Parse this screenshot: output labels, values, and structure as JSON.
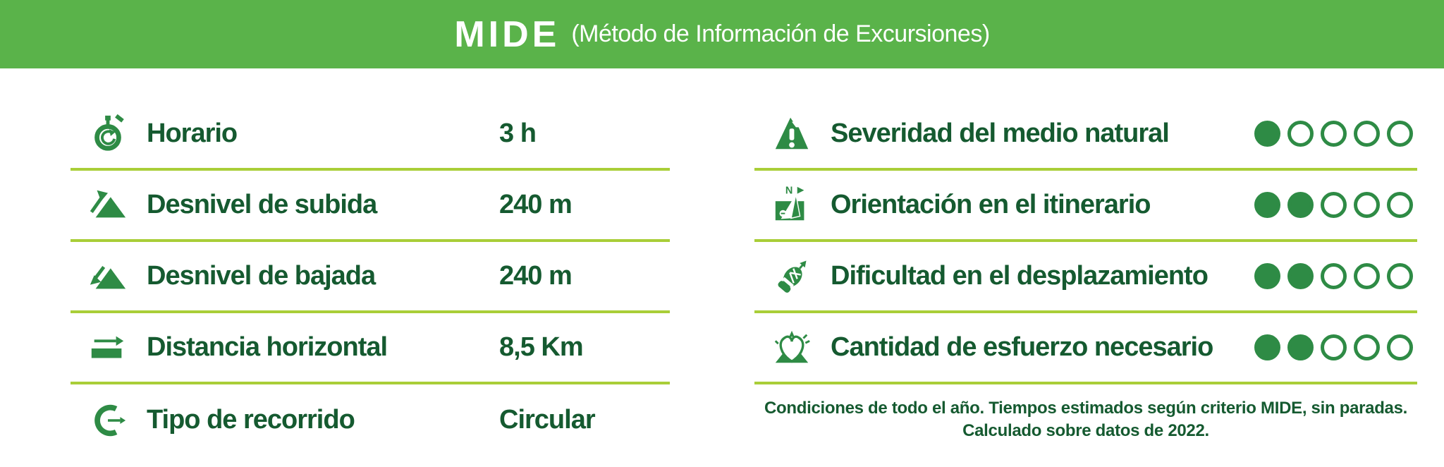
{
  "header": {
    "logo": "MIDE",
    "subtitle": "(Método de Información de Excursiones)"
  },
  "colors": {
    "header_bg": "#5ab34a",
    "icon": "#2e8b45",
    "text": "#155a30",
    "divider": "#a9ce38"
  },
  "left": {
    "rows": [
      {
        "icon": "stopwatch-icon",
        "label": "Horario",
        "value": "3 h"
      },
      {
        "icon": "ascent-icon",
        "label": "Desnivel de subida",
        "value": "240 m"
      },
      {
        "icon": "descent-icon",
        "label": "Desnivel de bajada",
        "value": "240 m"
      },
      {
        "icon": "horizontal-distance-icon",
        "label": "Distancia horizontal",
        "value": "8,5 Km"
      },
      {
        "icon": "route-type-icon",
        "label": "Tipo de recorrido",
        "value": "Circular"
      }
    ]
  },
  "right": {
    "rows": [
      {
        "icon": "severity-icon",
        "label": "Severidad del medio natural",
        "rating": 1,
        "max": 5
      },
      {
        "icon": "orientation-icon",
        "label": "Orientación en el itinerario",
        "rating": 2,
        "max": 5
      },
      {
        "icon": "displacement-difficulty-icon",
        "label": "Dificultad en el desplazamiento",
        "rating": 2,
        "max": 5
      },
      {
        "icon": "effort-icon",
        "label": "Cantidad de esfuerzo necesario",
        "rating": 2,
        "max": 5
      }
    ],
    "footnote_line1": "Condiciones de todo el año. Tiempos estimados según criterio MIDE, sin paradas.",
    "footnote_line2": "Calculado sobre datos de 2022."
  }
}
